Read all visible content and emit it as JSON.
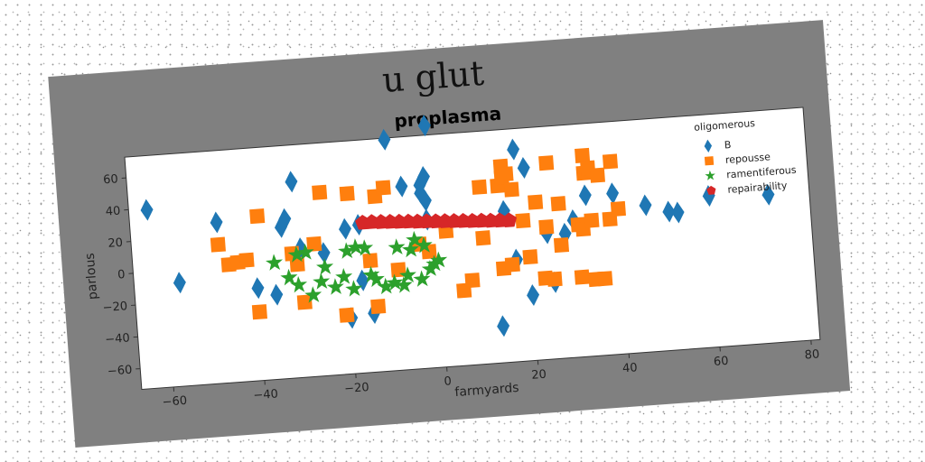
{
  "figure_title": "u glut",
  "chart_data": {
    "type": "scatter",
    "title": "proplasma",
    "xlabel": "farmyards",
    "ylabel": "parlous",
    "xlim": [
      -67,
      82
    ],
    "ylim": [
      -73,
      73
    ],
    "xticks": [
      -60,
      -40,
      -20,
      0,
      20,
      40,
      60,
      80
    ],
    "yticks": [
      -60,
      -40,
      -20,
      0,
      20,
      40,
      60
    ],
    "grid": false,
    "legend": {
      "title": "oligomerous",
      "placement": "top-right"
    },
    "series": [
      {
        "name": "B",
        "marker": "diamond",
        "color": "#1f77b4",
        "points": [
          [
            -63,
            39
          ],
          [
            -57,
            -8
          ],
          [
            -48,
            28
          ],
          [
            -40,
            -15
          ],
          [
            -36,
            -20
          ],
          [
            -34,
            22
          ],
          [
            -33,
            27
          ],
          [
            -31,
            50
          ],
          [
            -30,
            8
          ],
          [
            -25,
            4
          ],
          [
            -20,
            18
          ],
          [
            -20,
            -38
          ],
          [
            -17,
            20
          ],
          [
            -17,
            -15
          ],
          [
            -15,
            -36
          ],
          [
            -10,
            72
          ],
          [
            -7,
            42
          ],
          [
            -3,
            42
          ],
          [
            -3,
            37
          ],
          [
            -2,
            47
          ],
          [
            -2,
            20
          ],
          [
            -2,
            32
          ],
          [
            -1,
            79
          ],
          [
            13,
            -50
          ],
          [
            15,
            22
          ],
          [
            17,
            -9
          ],
          [
            18,
            60
          ],
          [
            20,
            48
          ],
          [
            20,
            -32
          ],
          [
            24,
            6
          ],
          [
            25,
            -25
          ],
          [
            28,
            5
          ],
          [
            30,
            13
          ],
          [
            33,
            28
          ],
          [
            39,
            28
          ],
          [
            46,
            19
          ],
          [
            51,
            14
          ],
          [
            53,
            13
          ],
          [
            60,
            22
          ],
          [
            73,
            20
          ]
        ]
      },
      {
        "name": "repousse",
        "marker": "square",
        "color": "#ff7f0e",
        "points": [
          [
            -48,
            14
          ],
          [
            -46,
            1
          ],
          [
            -44,
            2
          ],
          [
            -42,
            3
          ],
          [
            -40,
            -30
          ],
          [
            -39,
            30
          ],
          [
            -32,
            5
          ],
          [
            -31,
            -2
          ],
          [
            -30,
            -26
          ],
          [
            -27,
            10
          ],
          [
            -25,
            42
          ],
          [
            -21,
            -36
          ],
          [
            -19,
            40
          ],
          [
            -15,
            -3
          ],
          [
            -14,
            -32
          ],
          [
            -13,
            37
          ],
          [
            -11,
            42
          ],
          [
            -9,
            -10
          ],
          [
            -4,
            5
          ],
          [
            -2,
            0
          ],
          [
            2,
            12
          ],
          [
            5,
            -26
          ],
          [
            7,
            -20
          ],
          [
            10,
            38
          ],
          [
            10,
            6
          ],
          [
            14,
            -14
          ],
          [
            14,
            38
          ],
          [
            15,
            50
          ],
          [
            15,
            43
          ],
          [
            16,
            45
          ],
          [
            16,
            -12
          ],
          [
            17,
            35
          ],
          [
            19,
            15
          ],
          [
            20,
            -8
          ],
          [
            22,
            26
          ],
          [
            23,
            -22
          ],
          [
            24,
            10
          ],
          [
            25,
            -23
          ],
          [
            25,
            50
          ],
          [
            27,
            24
          ],
          [
            27,
            -2
          ],
          [
            31,
            10
          ],
          [
            31,
            -23
          ],
          [
            32,
            7
          ],
          [
            33,
            53
          ],
          [
            33,
            42
          ],
          [
            34,
            45
          ],
          [
            34,
            12
          ],
          [
            34,
            -25
          ],
          [
            36,
            40
          ],
          [
            36,
            -25
          ],
          [
            38,
            12
          ],
          [
            39,
            48
          ],
          [
            40,
            18
          ]
        ]
      },
      {
        "name": "ramentiferous",
        "marker": "star",
        "color": "#2ca02c",
        "points": [
          [
            -36,
            0
          ],
          [
            -33,
            -10
          ],
          [
            -31,
            4
          ],
          [
            -31,
            -15
          ],
          [
            -29,
            5
          ],
          [
            -28,
            -22
          ],
          [
            -26,
            -14
          ],
          [
            -25,
            -5
          ],
          [
            -23,
            -18
          ],
          [
            -21,
            -12
          ],
          [
            -20,
            4
          ],
          [
            -19,
            -20
          ],
          [
            -18,
            6
          ],
          [
            -16,
            5
          ],
          [
            -15,
            -12
          ],
          [
            -14,
            -15
          ],
          [
            -12,
            -20
          ],
          [
            -10,
            -18
          ],
          [
            -9,
            4
          ],
          [
            -8,
            -20
          ],
          [
            -7,
            -14
          ],
          [
            -6,
            2
          ],
          [
            -5,
            8
          ],
          [
            -4,
            -17
          ],
          [
            -3,
            4
          ],
          [
            -2,
            -11
          ],
          [
            -1,
            -8
          ],
          [
            0,
            -6
          ]
        ]
      },
      {
        "name": "repairability",
        "marker": "pentagon",
        "color": "#d62728",
        "points": [
          [
            -16,
            21
          ],
          [
            -14,
            21
          ],
          [
            -12,
            20.6
          ],
          [
            -10,
            20.3
          ],
          [
            -8,
            19.9
          ],
          [
            -6,
            19.6
          ],
          [
            -4,
            19.2
          ],
          [
            -2,
            18.9
          ],
          [
            0,
            18.5
          ],
          [
            2,
            18.2
          ],
          [
            4,
            17.8
          ],
          [
            6,
            17.5
          ],
          [
            8,
            17.1
          ],
          [
            10,
            16.8
          ],
          [
            12,
            16.4
          ],
          [
            14,
            16.1
          ],
          [
            16,
            15.7
          ]
        ]
      }
    ]
  }
}
